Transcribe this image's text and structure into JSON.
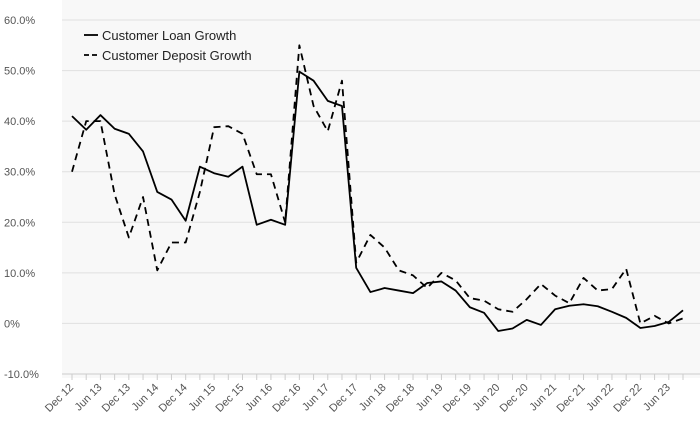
{
  "chart_data": {
    "type": "line",
    "title": "",
    "xlabel": "",
    "ylabel": "",
    "ylim": [
      -10,
      60
    ],
    "y_ticks": [
      -10,
      0,
      10,
      20,
      30,
      40,
      50,
      60
    ],
    "y_tick_labels": [
      "-10.0%",
      "0%",
      "10.0%",
      "20.0%",
      "30.0%",
      "40.0%",
      "50.0%",
      "60.0%"
    ],
    "grid": "horizontal",
    "legend_position": "top-left",
    "x": [
      "Dec 12",
      "Mar 13",
      "Jun 13",
      "Sep 13",
      "Dec 13",
      "Mar 14",
      "Jun 14",
      "Sep 14",
      "Dec 14",
      "Mar 15",
      "Jun 15",
      "Sep 15",
      "Dec 15",
      "Mar 16",
      "Jun 16",
      "Sep 16",
      "Dec 16",
      "Mar 17",
      "Jun 17",
      "Sep 17",
      "Dec 17",
      "Mar 18",
      "Jun 18",
      "Sep 18",
      "Dec 18",
      "Mar 19",
      "Jun 19",
      "Sep 19",
      "Dec 19",
      "Mar 20",
      "Jun 20",
      "Sep 20",
      "Dec 20",
      "Mar 21",
      "Jun 21",
      "Sep 21",
      "Dec 21",
      "Mar 22",
      "Jun 22",
      "Sep 22",
      "Dec 22",
      "Mar 23",
      "Jun 23",
      "Sep 23"
    ],
    "x_tick_labels": [
      "Dec 12",
      "Jun 13",
      "Dec 13",
      "Jun 14",
      "Dec 14",
      "Jun 15",
      "Dec 15",
      "Jun 16",
      "Dec 16",
      "Jun 17",
      "Dec 17",
      "Jun 18",
      "Dec 18",
      "Jun 19",
      "Dec 19",
      "Jun 20",
      "Dec 20",
      "Jun 21",
      "Dec 21",
      "Jun 22",
      "Dec 22",
      "Jun 23"
    ],
    "series": [
      {
        "name": "Customer Loan Growth",
        "style": "solid",
        "color": "#000000",
        "values": [
          41.0,
          38.3,
          41.2,
          38.5,
          37.5,
          34.0,
          26.0,
          24.5,
          20.3,
          31.0,
          29.7,
          29.0,
          31.0,
          19.5,
          20.5,
          19.5,
          49.8,
          48.0,
          44.0,
          43.0,
          11.0,
          6.2,
          7.0,
          6.5,
          6.0,
          8.0,
          8.3,
          6.5,
          3.2,
          2.1,
          -1.5,
          -1.0,
          0.7,
          -0.3,
          2.8,
          3.5,
          3.8,
          3.4,
          2.3,
          1.1,
          -0.9,
          -0.5,
          0.3,
          2.6
        ]
      },
      {
        "name": "Customer Deposit Growth",
        "style": "dashed",
        "color": "#000000",
        "values": [
          30.0,
          40.0,
          40.0,
          25.5,
          17.0,
          25.0,
          10.5,
          16.0,
          16.0,
          26.0,
          38.8,
          39.0,
          37.5,
          29.5,
          29.5,
          20.0,
          55.0,
          43.0,
          38.0,
          48.0,
          12.0,
          17.5,
          15.0,
          10.5,
          9.5,
          7.0,
          10.0,
          8.5,
          5.0,
          4.5,
          2.8,
          2.3,
          4.8,
          7.8,
          5.5,
          4.0,
          9.0,
          6.5,
          6.8,
          10.8,
          0.0,
          1.5,
          0.0,
          1.0
        ]
      }
    ]
  },
  "colors": {
    "background": "#ffffff",
    "plot_background": "#f8f8f8",
    "grid": "#e0e0e0",
    "axis": "#cccccc",
    "text": "#555555"
  }
}
